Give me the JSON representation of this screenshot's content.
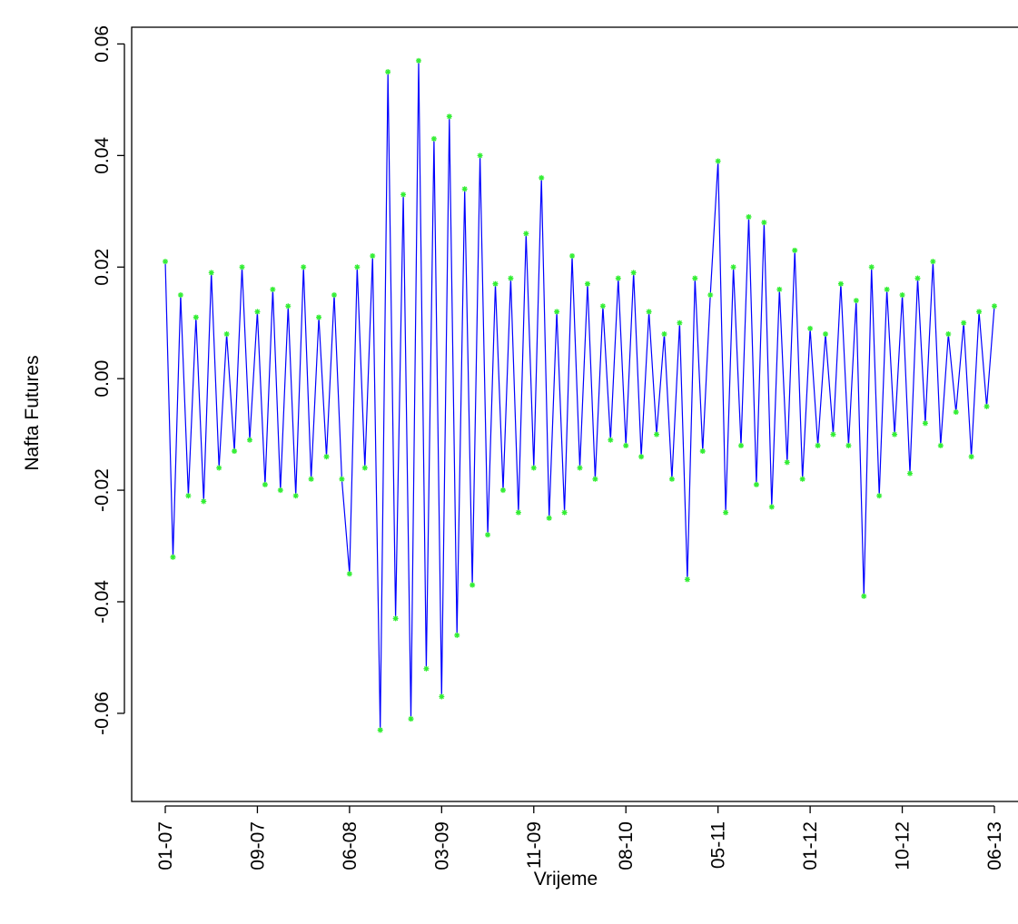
{
  "chart_data": {
    "type": "line",
    "x_label": "Vrijeme",
    "y_label": "Nafta Futures",
    "categories": [
      "01-07",
      null,
      null,
      null,
      null,
      null,
      null,
      null,
      null,
      null,
      null,
      null,
      "09-07",
      null,
      null,
      null,
      null,
      null,
      null,
      null,
      null,
      null,
      null,
      null,
      "06-08",
      null,
      null,
      null,
      null,
      null,
      null,
      null,
      null,
      null,
      null,
      null,
      "03-09",
      null,
      null,
      null,
      null,
      null,
      null,
      null,
      null,
      null,
      null,
      null,
      "11-09",
      null,
      null,
      null,
      null,
      null,
      null,
      null,
      null,
      null,
      null,
      null,
      "08-10",
      null,
      null,
      null,
      null,
      null,
      null,
      null,
      null,
      null,
      null,
      null,
      "05-11",
      null,
      null,
      null,
      null,
      null,
      null,
      null,
      null,
      null,
      null,
      null,
      "01-12",
      null,
      null,
      null,
      null,
      null,
      null,
      null,
      null,
      null,
      null,
      null,
      "10-12",
      null,
      null,
      null,
      null,
      null,
      null,
      null,
      null,
      null,
      null,
      null,
      "06-13"
    ],
    "values": [
      0.021,
      -0.032,
      0.015,
      -0.021,
      0.011,
      -0.022,
      0.019,
      -0.016,
      0.008,
      -0.013,
      0.02,
      -0.011,
      0.012,
      -0.019,
      0.016,
      -0.02,
      0.013,
      -0.021,
      0.02,
      -0.018,
      0.011,
      -0.014,
      0.015,
      -0.018,
      -0.035,
      0.02,
      -0.016,
      0.022,
      -0.063,
      0.055,
      -0.043,
      0.033,
      -0.061,
      0.057,
      -0.052,
      0.043,
      -0.057,
      0.047,
      -0.046,
      0.034,
      -0.037,
      0.04,
      -0.028,
      0.017,
      -0.02,
      0.018,
      -0.024,
      0.026,
      -0.016,
      0.036,
      -0.025,
      0.012,
      -0.024,
      0.022,
      -0.016,
      0.017,
      -0.018,
      0.013,
      -0.011,
      0.018,
      -0.012,
      0.019,
      -0.014,
      0.012,
      -0.01,
      0.008,
      -0.018,
      0.01,
      -0.036,
      0.018,
      -0.013,
      0.015,
      0.039,
      -0.024,
      0.02,
      -0.012,
      0.029,
      -0.019,
      0.028,
      -0.023,
      0.016,
      -0.015,
      0.023,
      -0.018,
      0.009,
      -0.012,
      0.008,
      -0.01,
      0.017,
      -0.012,
      0.014,
      -0.039,
      0.02,
      -0.021,
      0.016,
      -0.01,
      0.015,
      -0.017,
      0.018,
      -0.008,
      0.021,
      -0.012,
      0.008,
      -0.006,
      0.01,
      -0.014,
      0.012,
      -0.005,
      0.013
    ],
    "line_color": "#0000ff",
    "marker_color": "#33ee33",
    "ylim": [
      -0.0758,
      0.063
    ],
    "yticks": [
      -0.06,
      -0.04,
      -0.02,
      {
        "value": 0,
        "label": "0.00"
      },
      0.02,
      0.04,
      0.06
    ],
    "grid": false
  }
}
